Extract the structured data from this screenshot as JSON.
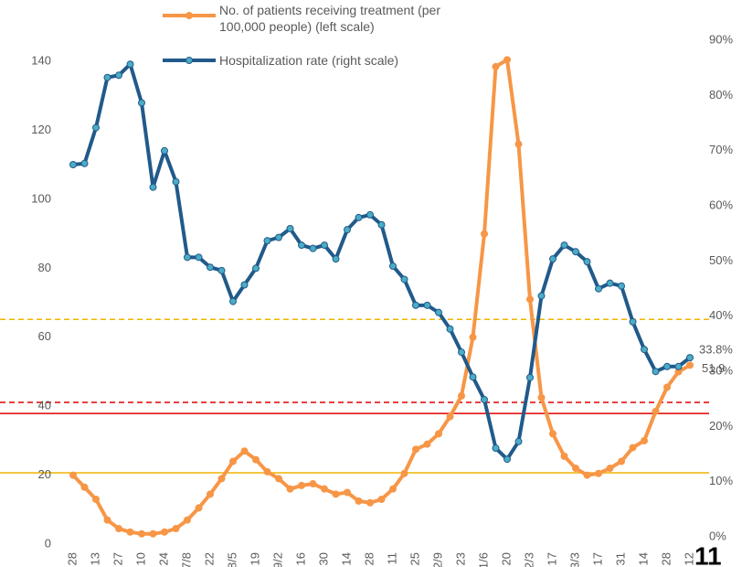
{
  "chart_data": {
    "type": "line",
    "page_number": "11",
    "categories": [
      "28",
      null,
      "13",
      null,
      "27",
      null,
      "10",
      null,
      "24",
      null,
      "7/8",
      null,
      "22",
      null,
      "8/5",
      null,
      "19",
      null,
      "9/2",
      null,
      "16",
      null,
      "30",
      null,
      "14",
      null,
      "28",
      null,
      "11",
      null,
      "25",
      null,
      "12/9",
      null,
      "23",
      null,
      "1/6",
      null,
      "20",
      null,
      "2/3",
      null,
      "17",
      null,
      "3/3",
      null,
      "17",
      null,
      "31",
      null,
      "14",
      null,
      "28",
      null,
      "12"
    ],
    "series": [
      {
        "name": "No. of patients receiving treatment (per 100,000 people) (left scale)",
        "color": "#f79646",
        "marker_color": "#f79646",
        "axis": "y",
        "values": [
          20,
          16.5,
          13,
          7,
          4.5,
          3.5,
          3,
          3,
          3.5,
          4.5,
          7,
          10.5,
          14.5,
          19,
          24,
          27,
          24.5,
          21,
          19,
          16,
          17,
          17.5,
          16,
          14.5,
          15,
          12.5,
          12,
          13,
          16,
          20.5,
          27.5,
          29,
          32,
          37,
          43,
          60,
          90,
          138.5,
          140.5,
          116,
          71,
          42.5,
          32,
          25.5,
          22,
          20,
          20.5,
          22,
          24,
          28,
          30,
          38.5,
          45.5,
          50,
          51.9
        ]
      },
      {
        "name": "Hospitalization rate (right scale)",
        "color": "#215a8a",
        "marker_color": "#4bacc6",
        "axis": "y2",
        "values": [
          68.8,
          69,
          75.5,
          84.6,
          85,
          87,
          80,
          64.7,
          71.3,
          65.7,
          52,
          52,
          50.2,
          49.6,
          44,
          47,
          50,
          55,
          55.6,
          57.2,
          54.2,
          53.6,
          54.2,
          51.7,
          57,
          59.2,
          59.7,
          57.9,
          50.4,
          48,
          43.3,
          43.3,
          42,
          39,
          34.8,
          30.3,
          26.2,
          17.4,
          15.4,
          18.6,
          30.2,
          45,
          51.7,
          54.2,
          53,
          51.2,
          46.3,
          47.3,
          46.8,
          40.3,
          35.3,
          31.3,
          32.2,
          32.2,
          33.8
        ],
        "value_labels": [
          null,
          null,
          null,
          null,
          null,
          null,
          null,
          null,
          null,
          null,
          null,
          null,
          null,
          null,
          null,
          null,
          null,
          null,
          null,
          null,
          null,
          null,
          null,
          null,
          null,
          null,
          null,
          null,
          null,
          null,
          null,
          null,
          null,
          null,
          null,
          null,
          null,
          null,
          null,
          null,
          null,
          null,
          null,
          null,
          null,
          null,
          null,
          null,
          null,
          null,
          null,
          null,
          null,
          null,
          "33.8%"
        ]
      }
    ],
    "ylim": [
      0,
      144
    ],
    "yticks": [
      0,
      20,
      40,
      60,
      80,
      100,
      120,
      140
    ],
    "y2lim": [
      0,
      90
    ],
    "y2ticks": [
      {
        "value": 0,
        "label": "0%"
      },
      {
        "value": 10,
        "label": "10%"
      },
      {
        "value": 20,
        "label": "20%"
      },
      {
        "value": 30,
        "label": "30%"
      },
      {
        "value": 40,
        "label": "40%"
      },
      {
        "value": 50,
        "label": "50%"
      },
      {
        "value": 60,
        "label": "60%"
      },
      {
        "value": 70,
        "label": "70%"
      },
      {
        "value": 80,
        "label": "80%"
      },
      {
        "value": 90,
        "label": "90%"
      }
    ],
    "reference_lines": [
      {
        "value": 65.2,
        "color": "#f0b400",
        "style": "dashed"
      },
      {
        "value": 41.1,
        "color": "#e00000",
        "style": "dashed"
      },
      {
        "value": 37.9,
        "color": "#e00000",
        "style": "solid"
      },
      {
        "value": 20.7,
        "color": "#f0b400",
        "style": "solid"
      }
    ]
  }
}
